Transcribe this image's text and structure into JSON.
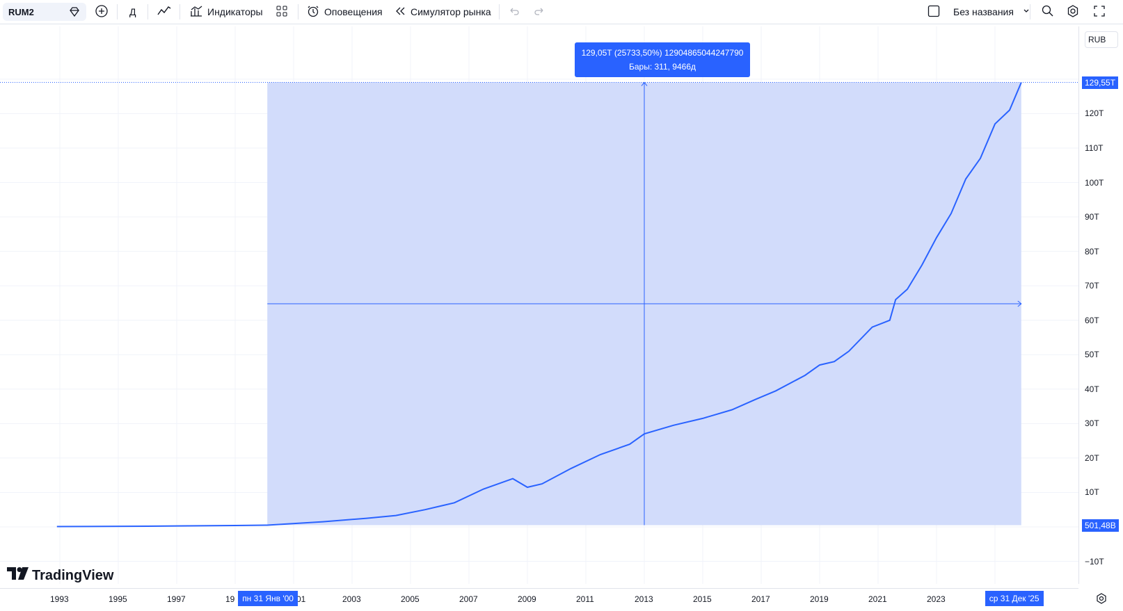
{
  "toolbar": {
    "symbol": "RUM2",
    "interval": "Д",
    "indicators": "Индикаторы",
    "alerts": "Оповещения",
    "replay": "Симулятор рынка",
    "layout_name": "Без названия"
  },
  "price_scale": {
    "currency": "RUB",
    "labels": [
      "120Т",
      "110Т",
      "100Т",
      "90Т",
      "80Т",
      "70Т",
      "60Т",
      "50Т",
      "40Т",
      "30Т",
      "20Т",
      "10Т",
      "−10Т"
    ],
    "top_badge": "129,55Т",
    "bottom_badge": "501,48B"
  },
  "time_scale": {
    "labels": [
      "1993",
      "1995",
      "1997",
      "19",
      "01",
      "2003",
      "2005",
      "2007",
      "2009",
      "2011",
      "2013",
      "2015",
      "2017",
      "2019",
      "2021",
      "2023"
    ],
    "start_badge": "пн 31 Янв '00",
    "end_badge": "ср 31 Дек '25"
  },
  "measure_tooltip": {
    "line1": "129,05Т (25733,50%) 12904865044247790",
    "line2": "Бары: 311, 9466д"
  },
  "brand": "TradingView",
  "colors": {
    "accent": "#2962ff",
    "line": "#2962ff",
    "range_fill": "#d2dcfb"
  },
  "chart_data": {
    "type": "line",
    "x": [
      1992.9,
      1996,
      1999,
      2000.1,
      2002,
      2003.5,
      2004.5,
      2005.5,
      2006.5,
      2007.5,
      2008.5,
      2009,
      2009.5,
      2010.5,
      2011.5,
      2012.5,
      2013,
      2014,
      2015,
      2016,
      2016.8,
      2017.5,
      2018.5,
      2019,
      2019.5,
      2020,
      2020.8,
      2021.4,
      2021.6,
      2022,
      2022.5,
      2023,
      2023.5,
      2024,
      2024.5,
      2025,
      2025.5,
      2025.9
    ],
    "values": [
      0.1,
      0.2,
      0.4,
      0.5,
      1.5,
      2.5,
      3.3,
      5,
      7,
      11,
      14,
      11.5,
      12.5,
      17,
      21,
      24,
      27,
      29.5,
      31.5,
      34,
      37,
      39.5,
      44,
      47,
      48,
      51,
      58,
      60,
      66,
      69,
      76,
      84,
      91,
      101,
      107,
      117,
      121,
      129.05
    ]
  }
}
